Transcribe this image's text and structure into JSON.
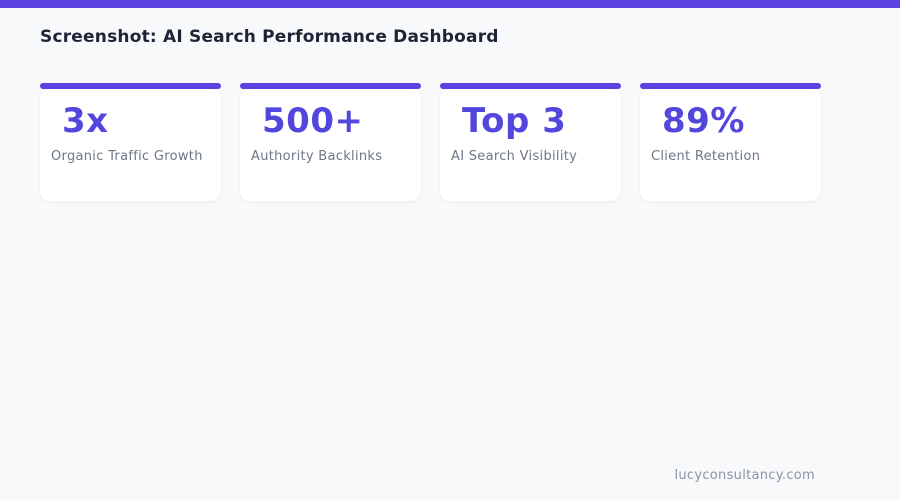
{
  "page": {
    "title": "Screenshot: AI Search Performance Dashboard",
    "footer_domain": "lucyconsultancy.com"
  },
  "stats": [
    {
      "value": "3x",
      "label": "Organic Traffic Growth"
    },
    {
      "value": "500+",
      "label": "Authority Backlinks"
    },
    {
      "value": "Top 3",
      "label": "AI Search Visibility"
    },
    {
      "value": "89%",
      "label": "Client Retention"
    }
  ],
  "theme": {
    "accent": "#5A43E0",
    "stat_color": "#5246DC",
    "background": "#F8F9FB",
    "card_bg": "#FFFFFF",
    "title_color": "#1C2435",
    "label_color": "#6E7787",
    "footer_color": "#8A94A6"
  }
}
